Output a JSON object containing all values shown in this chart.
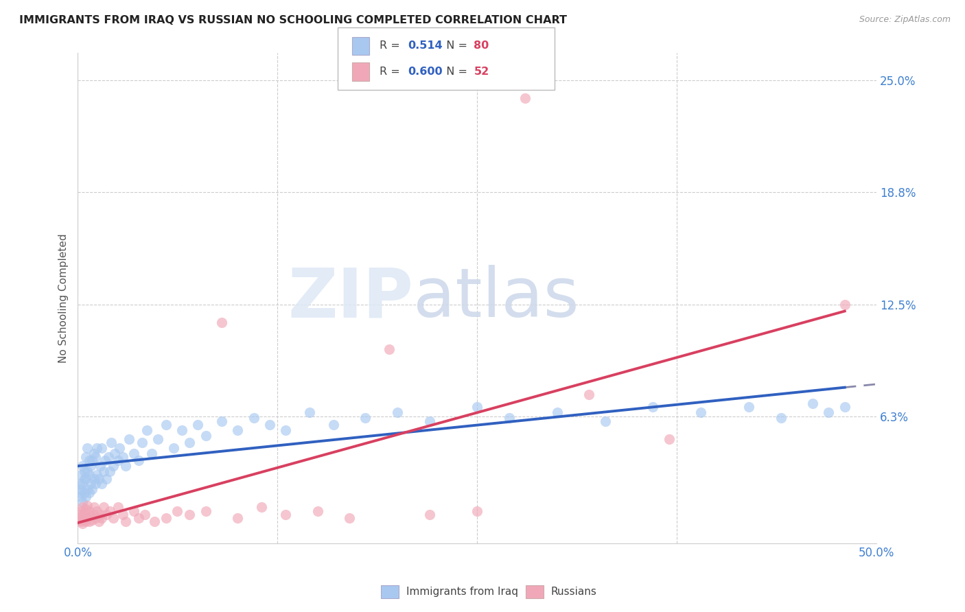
{
  "title": "IMMIGRANTS FROM IRAQ VS RUSSIAN NO SCHOOLING COMPLETED CORRELATION CHART",
  "source": "Source: ZipAtlas.com",
  "ylabel": "No Schooling Completed",
  "xlim": [
    0.0,
    0.5
  ],
  "ylim": [
    -0.008,
    0.265
  ],
  "ytick_positions": [
    0.0625,
    0.125,
    0.1875,
    0.25
  ],
  "ytick_labels": [
    "6.3%",
    "12.5%",
    "18.8%",
    "25.0%"
  ],
  "xtick_positions": [
    0.0,
    0.125,
    0.25,
    0.375,
    0.5
  ],
  "xtick_labels": [
    "0.0%",
    "",
    "",
    "",
    "50.0%"
  ],
  "legend1_r": "0.514",
  "legend1_n": "80",
  "legend2_r": "0.600",
  "legend2_n": "52",
  "color_iraq": "#a8c8f0",
  "color_russia": "#f0a8b8",
  "trendline_iraq_color": "#3060c0",
  "trendline_russia_color": "#d84060",
  "trendline_extend_color": "#8888aa",
  "iraq_x": [
    0.001,
    0.001,
    0.002,
    0.002,
    0.002,
    0.003,
    0.003,
    0.003,
    0.004,
    0.004,
    0.004,
    0.005,
    0.005,
    0.005,
    0.006,
    0.006,
    0.006,
    0.007,
    0.007,
    0.007,
    0.008,
    0.008,
    0.009,
    0.009,
    0.01,
    0.01,
    0.011,
    0.011,
    0.012,
    0.012,
    0.013,
    0.014,
    0.015,
    0.015,
    0.016,
    0.017,
    0.018,
    0.019,
    0.02,
    0.021,
    0.022,
    0.023,
    0.025,
    0.026,
    0.028,
    0.03,
    0.032,
    0.035,
    0.038,
    0.04,
    0.043,
    0.046,
    0.05,
    0.055,
    0.06,
    0.065,
    0.07,
    0.075,
    0.08,
    0.09,
    0.1,
    0.11,
    0.12,
    0.13,
    0.145,
    0.16,
    0.18,
    0.2,
    0.22,
    0.25,
    0.27,
    0.3,
    0.33,
    0.36,
    0.39,
    0.42,
    0.44,
    0.46,
    0.47,
    0.48
  ],
  "iraq_y": [
    0.02,
    0.025,
    0.018,
    0.022,
    0.03,
    0.015,
    0.025,
    0.035,
    0.02,
    0.028,
    0.032,
    0.018,
    0.028,
    0.04,
    0.022,
    0.032,
    0.045,
    0.02,
    0.03,
    0.038,
    0.025,
    0.035,
    0.022,
    0.038,
    0.028,
    0.042,
    0.025,
    0.04,
    0.03,
    0.045,
    0.028,
    0.035,
    0.025,
    0.045,
    0.032,
    0.038,
    0.028,
    0.04,
    0.032,
    0.048,
    0.035,
    0.042,
    0.038,
    0.045,
    0.04,
    0.035,
    0.05,
    0.042,
    0.038,
    0.048,
    0.055,
    0.042,
    0.05,
    0.058,
    0.045,
    0.055,
    0.048,
    0.058,
    0.052,
    0.06,
    0.055,
    0.062,
    0.058,
    0.055,
    0.065,
    0.058,
    0.062,
    0.065,
    0.06,
    0.068,
    0.062,
    0.065,
    0.06,
    0.068,
    0.065,
    0.068,
    0.062,
    0.07,
    0.065,
    0.068
  ],
  "russia_x": [
    0.001,
    0.001,
    0.002,
    0.002,
    0.003,
    0.003,
    0.003,
    0.004,
    0.004,
    0.005,
    0.005,
    0.006,
    0.006,
    0.007,
    0.007,
    0.008,
    0.009,
    0.01,
    0.01,
    0.011,
    0.012,
    0.013,
    0.014,
    0.015,
    0.016,
    0.018,
    0.02,
    0.022,
    0.025,
    0.028,
    0.03,
    0.035,
    0.038,
    0.042,
    0.048,
    0.055,
    0.062,
    0.07,
    0.08,
    0.09,
    0.1,
    0.115,
    0.13,
    0.15,
    0.17,
    0.195,
    0.22,
    0.25,
    0.28,
    0.32,
    0.37,
    0.48
  ],
  "russia_y": [
    0.005,
    0.008,
    0.004,
    0.01,
    0.003,
    0.007,
    0.012,
    0.005,
    0.009,
    0.004,
    0.011,
    0.006,
    0.013,
    0.004,
    0.01,
    0.007,
    0.005,
    0.008,
    0.012,
    0.006,
    0.01,
    0.004,
    0.008,
    0.006,
    0.012,
    0.008,
    0.01,
    0.006,
    0.012,
    0.008,
    0.004,
    0.01,
    0.006,
    0.008,
    0.004,
    0.006,
    0.01,
    0.008,
    0.01,
    0.115,
    0.006,
    0.012,
    0.008,
    0.01,
    0.006,
    0.1,
    0.008,
    0.01,
    0.24,
    0.075,
    0.05,
    0.125
  ]
}
